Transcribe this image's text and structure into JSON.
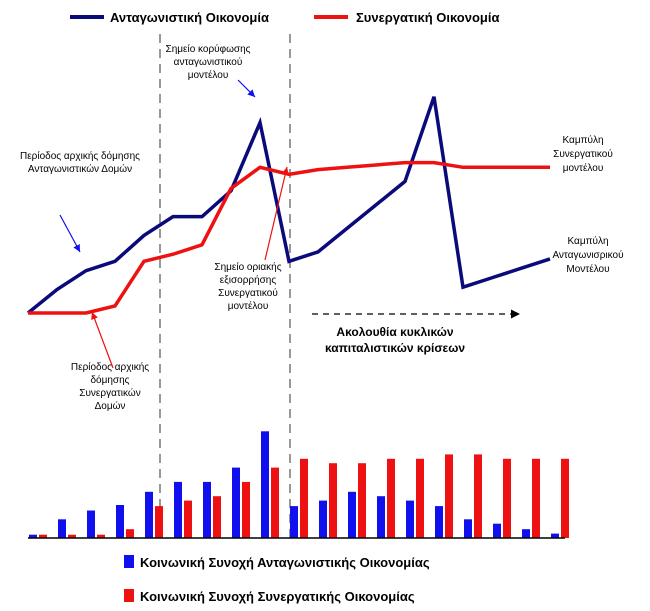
{
  "legend_top": {
    "competitive": "Ανταγωνιστική Οικονομία",
    "cooperative": "Συνεργατική Οικονομία"
  },
  "legend_bottom": {
    "competitive_cohesion": "Κοινωνική Συνοχή  Ανταγωνιστικής Οικονομίας",
    "cooperative_cohesion": "Κοινωνική Συνοχή Συνεργατικής Οικονομίας"
  },
  "annotations": {
    "peak": [
      "Σημείο κορύφωσης",
      "ανταγωνιστικού",
      "μοντέλου"
    ],
    "initial_competitive": [
      "Περίοδος αρχικής δόμησης",
      "Ανταγωνιστικών Δομών"
    ],
    "initial_cooperative": [
      "Περίοδος αρχικής",
      "δόμησης",
      "Συνεργατικών",
      "Δομών"
    ],
    "marginal_equalization": [
      "Σημείο οριακής",
      "εξισορρήσης",
      "Συνεργατικού",
      "μοντέλου"
    ],
    "crises": [
      "Ακολουθία κυκλικών",
      "καπιταλιστικών κρίσεων"
    ],
    "curve_cooperative": [
      "Καμπύλη",
      "Συνεργατικού",
      "μοντέλου"
    ],
    "curve_competitive": [
      "Καμπύλη",
      "Ανταγωνισρικού",
      "Μοντέλου"
    ]
  },
  "colors": {
    "competitive": "#0a0a7a",
    "cooperative": "#ee1111",
    "bar_blue": "#1010ee",
    "bar_red": "#ee1111",
    "divider": "#999999"
  },
  "chart_data": {
    "type": "line",
    "x": [
      0,
      1,
      2,
      3,
      4,
      5,
      6,
      7,
      8,
      9,
      10,
      11,
      12,
      13,
      14,
      15,
      16,
      17,
      18
    ],
    "series": [
      {
        "name": "Ανταγωνιστική Οικονομία",
        "values": [
          0,
          10,
          18,
          22,
          33,
          41,
          41,
          52,
          81,
          22,
          26,
          36,
          46,
          56,
          92,
          11,
          15,
          19,
          23
        ]
      },
      {
        "name": "Συνεργατική Οικονομία",
        "values": [
          0,
          0,
          0,
          3,
          22,
          25,
          29,
          53,
          62,
          59,
          61,
          62,
          63,
          64,
          64,
          62,
          62,
          62,
          62
        ]
      }
    ],
    "bars": {
      "categories": [
        0,
        1,
        2,
        3,
        4,
        5,
        6,
        7,
        8,
        9,
        10,
        11,
        12,
        13,
        14,
        15,
        16,
        17,
        18
      ],
      "series": [
        {
          "name": "Κοινωνική Συνοχή  Ανταγωνιστικής Οικονομίας",
          "values": [
            3,
            17,
            25,
            30,
            42,
            51,
            51,
            64,
            97,
            29,
            34,
            42,
            38,
            34,
            29,
            17,
            13,
            8,
            4
          ]
        },
        {
          "name": "Κοινωνική Συνοχή Συνεργατικής Οικονομίας",
          "values": [
            3,
            3,
            3,
            8,
            29,
            34,
            38,
            51,
            64,
            72,
            68,
            68,
            72,
            72,
            76,
            76,
            72,
            72,
            72
          ]
        }
      ]
    }
  }
}
